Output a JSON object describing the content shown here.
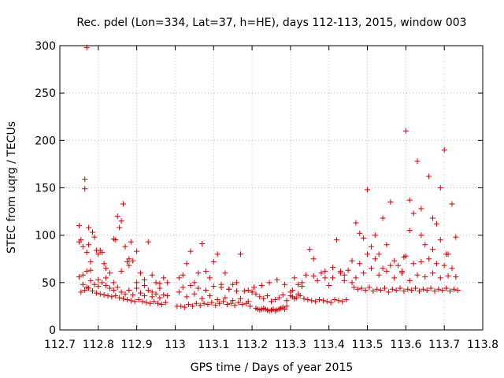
{
  "chart_data": {
    "type": "scatter",
    "title": "Rec. pdel (Lon=334, Lat=37, h=HE), days 112-113, 2015, window 003",
    "xlabel": "GPS time / Days of year 2015",
    "ylabel": "STEC from uqrg / TECUs",
    "xlim": [
      112.7,
      113.8
    ],
    "ylim": [
      0,
      300
    ],
    "xticks": [
      112.7,
      112.8,
      112.9,
      113.0,
      113.1,
      113.2,
      113.3,
      113.4,
      113.5,
      113.6,
      113.7,
      113.8
    ],
    "xtick_labels": [
      "112.7",
      "112.8",
      "112.9",
      "113",
      "113.1",
      "113.2",
      "113.3",
      "113.4",
      "113.5",
      "113.6",
      "113.7",
      "113.8"
    ],
    "yticks": [
      0,
      50,
      100,
      150,
      200,
      250,
      300
    ],
    "ytick_labels": [
      "0",
      "50",
      "100",
      "150",
      "200",
      "250",
      "300"
    ],
    "grid": true,
    "marker": "+",
    "color": "#cc0000",
    "series": [
      {
        "x": [
          112.75,
          112.75,
          112.755,
          112.76,
          112.765,
          112.765,
          112.77,
          112.77,
          112.775,
          112.775,
          112.78,
          112.785,
          112.79,
          112.795,
          112.8,
          112.805,
          112.81,
          112.815,
          112.82,
          112.83,
          112.84,
          112.845,
          112.85,
          112.855,
          112.86,
          112.865,
          112.87,
          112.875,
          112.88,
          112.885,
          112.89,
          112.9,
          112.91,
          112.92,
          112.93,
          112.94,
          112.95,
          112.96,
          112.97,
          112.98,
          112.75,
          112.76,
          112.77,
          112.78,
          112.79,
          112.8,
          112.81,
          112.82,
          112.83,
          112.84,
          112.85,
          112.86,
          112.87,
          112.88,
          112.89,
          112.9,
          112.91,
          112.92,
          112.93,
          112.94,
          112.95,
          112.96,
          112.97,
          112.98,
          112.755,
          112.765,
          112.775,
          112.785,
          112.795,
          112.805,
          112.815,
          112.825,
          112.835,
          112.845,
          112.855,
          112.865,
          112.875,
          112.885,
          112.895,
          112.905,
          112.915,
          112.925,
          112.935,
          112.945,
          112.955,
          112.965,
          112.975,
          112.76,
          112.78,
          112.8,
          112.82,
          112.84,
          112.86,
          112.88,
          112.9,
          112.92,
          112.94,
          112.96,
          113.01,
          113.02,
          113.03,
          113.04,
          113.05,
          113.06,
          113.07,
          113.08,
          113.09,
          113.1,
          113.11,
          113.12,
          113.13,
          113.14,
          113.15,
          113.16,
          113.17,
          113.18,
          113.19,
          113.2,
          113.005,
          113.015,
          113.025,
          113.035,
          113.045,
          113.055,
          113.065,
          113.075,
          113.085,
          113.095,
          113.105,
          113.115,
          113.125,
          113.135,
          113.145,
          113.155,
          113.165,
          113.175,
          113.185,
          113.195,
          113.01,
          113.03,
          113.05,
          113.07,
          113.09,
          113.11,
          113.13,
          113.15,
          113.17,
          113.19,
          113.02,
          113.04,
          113.06,
          113.08,
          113.1,
          113.12,
          113.14,
          113.16,
          113.21,
          113.215,
          113.22,
          113.225,
          113.23,
          113.235,
          113.24,
          113.245,
          113.25,
          113.255,
          113.26,
          113.265,
          113.27,
          113.275,
          113.28,
          113.285,
          113.29,
          113.2,
          113.21,
          113.22,
          113.23,
          113.24,
          113.25,
          113.26,
          113.27,
          113.28,
          113.29,
          113.3,
          113.31,
          113.32,
          113.205,
          113.225,
          113.245,
          113.265,
          113.285,
          113.305,
          113.3,
          113.31,
          113.32,
          113.33,
          113.34,
          113.35,
          113.36,
          113.37,
          113.38,
          113.39,
          113.4,
          113.41,
          113.42,
          113.43,
          113.44,
          113.45,
          113.305,
          113.315,
          113.325,
          113.335,
          113.345,
          113.355,
          113.365,
          113.375,
          113.385,
          113.395,
          113.405,
          113.415,
          113.425,
          113.435,
          113.445,
          113.33,
          113.36,
          113.39,
          113.41,
          113.43,
          113.44,
          113.46,
          113.46,
          113.47,
          113.48,
          113.49,
          113.5,
          113.51,
          113.52,
          113.53,
          113.54,
          113.55,
          113.56,
          113.57,
          113.58,
          113.59,
          113.6,
          113.61,
          113.62,
          113.63,
          113.64,
          113.65,
          113.66,
          113.67,
          113.68,
          113.69,
          113.7,
          113.71,
          113.72,
          113.73,
          113.465,
          113.475,
          113.485,
          113.495,
          113.505,
          113.515,
          113.525,
          113.535,
          113.545,
          113.555,
          113.565,
          113.575,
          113.585,
          113.595,
          113.605,
          113.615,
          113.625,
          113.635,
          113.645,
          113.655,
          113.665,
          113.675,
          113.685,
          113.695,
          113.705,
          113.715,
          113.725,
          113.735,
          113.47,
          113.49,
          113.51,
          113.53,
          113.55,
          113.57,
          113.59,
          113.61,
          113.63,
          113.65,
          113.67,
          113.69,
          113.71,
          113.73,
          113.48,
          113.5,
          113.52,
          113.54,
          113.56,
          113.6,
          113.62,
          113.64,
          113.66,
          113.68,
          113.7,
          113.72,
          113.595,
          113.705,
          113.64,
          113.67,
          113.69,
          113.61
        ],
        "y": [
          110,
          93,
          95,
          88,
          159,
          149,
          82,
          62,
          108,
          90,
          72,
          103,
          98,
          84,
          80,
          84,
          82,
          70,
          65,
          60,
          96,
          95,
          120,
          108,
          115,
          133,
          88,
          72,
          75,
          93,
          73,
          83,
          60,
          53,
          93,
          58,
          50,
          49,
          55,
          50,
          56,
          58,
          45,
          52,
          48,
          53,
          50,
          47,
          44,
          42,
          45,
          40,
          38,
          42,
          37,
          44,
          39,
          36,
          42,
          35,
          38,
          34,
          37,
          36,
          40,
          42,
          44,
          41,
          39,
          38,
          37,
          36,
          35,
          36,
          34,
          33,
          32,
          31,
          30,
          32,
          30,
          29,
          28,
          30,
          28,
          27,
          29,
          48,
          63,
          46,
          55,
          50,
          62,
          68,
          50,
          47,
          40,
          44,
          55,
          58,
          70,
          83,
          50,
          60,
          91,
          62,
          55,
          72,
          80,
          45,
          60,
          43,
          48,
          50,
          80,
          41,
          42,
          40,
          25,
          25,
          24,
          27,
          25,
          28,
          26,
          28,
          27,
          29,
          26,
          28,
          30,
          27,
          28,
          26,
          29,
          27,
          28,
          25,
          40,
          35,
          38,
          33,
          36,
          32,
          34,
          31,
          33,
          30,
          45,
          47,
          44,
          42,
          46,
          48,
          43,
          41,
          23,
          22,
          21,
          22,
          23,
          22,
          21,
          20,
          21,
          22,
          20,
          21,
          22,
          23,
          24,
          22,
          25,
          40,
          38,
          35,
          33,
          36,
          30,
          32,
          34,
          37,
          31,
          36,
          33,
          38,
          45,
          47,
          50,
          53,
          48,
          42,
          40,
          55,
          48,
          46,
          58,
          85,
          75,
          52,
          60,
          55,
          47,
          66,
          95,
          62,
          58,
          63,
          35,
          34,
          36,
          33,
          32,
          31,
          30,
          32,
          31,
          30,
          29,
          32,
          31,
          30,
          32,
          50,
          57,
          62,
          55,
          60,
          52,
          50,
          73,
          113,
          102,
          97,
          148,
          88,
          100,
          80,
          118,
          90,
          135,
          73,
          68,
          62,
          210,
          137,
          123,
          178,
          128,
          90,
          162,
          118,
          112,
          150,
          190,
          80,
          133,
          98,
          45,
          43,
          44,
          42,
          45,
          41,
          43,
          42,
          44,
          40,
          43,
          42,
          44,
          41,
          43,
          42,
          44,
          41,
          43,
          42,
          44,
          41,
          43,
          42,
          44,
          41,
          43,
          42,
          55,
          60,
          65,
          58,
          62,
          55,
          60,
          52,
          58,
          56,
          60,
          55,
          57,
          56,
          70,
          80,
          75,
          65,
          68,
          78,
          70,
          72,
          75,
          70,
          68,
          65,
          77,
          80,
          100,
          85,
          95,
          105
        ]
      }
    ],
    "outlier": {
      "x": 112.77,
      "y": 298
    }
  }
}
